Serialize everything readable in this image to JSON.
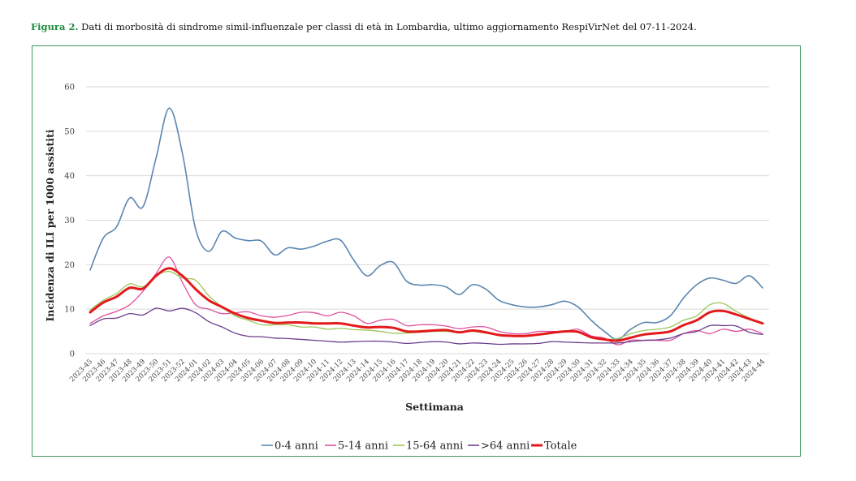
{
  "caption": {
    "figure_label": "Figura 2.",
    "text": " Dati di morbosità di sindrome simil-influenzale per classi di età in Lombardia, ultimo aggiornamento RespiVirNet del 07-11-2024."
  },
  "chart_data": {
    "type": "line",
    "title": "",
    "xlabel": "Settimana",
    "ylabel": "Incidenza di ILI per 1000 assistiti",
    "ylim": [
      0,
      60
    ],
    "yticks": [
      0,
      10,
      20,
      30,
      40,
      50,
      60
    ],
    "grid": true,
    "legend_position": "bottom",
    "categories": [
      "2023-45",
      "2023-46",
      "2023-47",
      "2023-48",
      "2023-49",
      "2023-50",
      "2023-51",
      "2023-52",
      "2024-01",
      "2024-02",
      "2024-03",
      "2024-04",
      "2024-05",
      "2024-06",
      "2024-07",
      "2024-08",
      "2024-09",
      "2024-10",
      "2024-11",
      "2024-12",
      "2024-13",
      "2024-14",
      "2024-15",
      "2024-16",
      "2024-17",
      "2024-18",
      "2024-19",
      "2024-20",
      "2024-21",
      "2024-22",
      "2024-23",
      "2024-24",
      "2024-25",
      "2024-26",
      "2024-27",
      "2024-28",
      "2024-29",
      "2024-30",
      "2024-31",
      "2024-32",
      "2024-33",
      "2024-34",
      "2024-35",
      "2024-36",
      "2024-37",
      "2024-38",
      "2024-39",
      "2024-40",
      "2024-41",
      "2024-42",
      "2024-43",
      "2024-44"
    ],
    "series": [
      {
        "name": "0-4 anni",
        "color": "#5b86b0",
        "width": 1.6,
        "values": [
          18.8,
          26,
          28.5,
          35,
          33,
          44,
          55.2,
          45,
          28,
          23,
          27.5,
          26,
          25.4,
          25.3,
          22.2,
          23.8,
          23.5,
          24.2,
          25.3,
          25.5,
          21,
          17.5,
          19.8,
          20.5,
          16.3,
          15.4,
          15.5,
          15,
          13.3,
          15.5,
          14.5,
          12,
          11,
          10.5,
          10.5,
          11,
          11.8,
          10.5,
          7.5,
          5,
          3.2,
          5.5,
          7,
          7,
          8.5,
          12.5,
          15.5,
          17,
          16.5,
          15.8,
          17.5,
          14.8
        ]
      },
      {
        "name": "5-14 anni",
        "color": "#e0509e",
        "width": 1.3,
        "values": [
          6.8,
          8.5,
          9.5,
          11,
          14,
          18,
          21.7,
          16,
          11,
          10,
          9,
          9.2,
          9.4,
          8.5,
          8.2,
          8.6,
          9.3,
          9.2,
          8.5,
          9.3,
          8.5,
          6.8,
          7.5,
          7.7,
          6.3,
          6.5,
          6.5,
          6.2,
          5.6,
          6,
          6,
          5,
          4.5,
          4.5,
          5,
          5,
          5,
          5.5,
          4,
          3.5,
          2,
          3,
          3,
          3,
          3,
          4.5,
          5.2,
          4.5,
          5.5,
          5,
          5.5,
          4.5
        ]
      },
      {
        "name": "15-64 anni",
        "color": "#9cc65a",
        "width": 1.3,
        "values": [
          9.8,
          12,
          13.5,
          15.7,
          15,
          17.5,
          18.5,
          17,
          16.5,
          13,
          10.5,
          8.5,
          7.5,
          6.5,
          6.5,
          6.5,
          6,
          6,
          5.5,
          5.7,
          5.4,
          5.3,
          5,
          4.6,
          4.6,
          4.8,
          5,
          5,
          4.8,
          5,
          4.6,
          4.2,
          4,
          4,
          4.2,
          4.5,
          5,
          5,
          3.5,
          3.2,
          3.4,
          4.5,
          5.2,
          5.5,
          6,
          7.5,
          8.5,
          11,
          11.3,
          9.5,
          8,
          6.8
        ]
      },
      {
        "name": ">64 anni",
        "color": "#6c3e8e",
        "width": 1.3,
        "values": [
          6.3,
          7.8,
          8,
          9,
          8.7,
          10.2,
          9.6,
          10.2,
          9.2,
          7.2,
          6,
          4.6,
          3.9,
          3.8,
          3.5,
          3.4,
          3.2,
          3,
          2.8,
          2.6,
          2.7,
          2.8,
          2.8,
          2.6,
          2.3,
          2.5,
          2.7,
          2.6,
          2.2,
          2.4,
          2.3,
          2.1,
          2.2,
          2.2,
          2.3,
          2.7,
          2.6,
          2.5,
          2.4,
          2.4,
          2.4,
          2.7,
          3,
          3.1,
          3.5,
          4.5,
          5,
          6.3,
          6.3,
          6.2,
          4.8,
          4.3
        ]
      },
      {
        "name": "Totale",
        "color": "#e31a1c",
        "width": 3,
        "values": [
          9.3,
          11.5,
          12.8,
          14.8,
          14.6,
          17.5,
          19.2,
          17.5,
          14.5,
          12,
          10.5,
          9,
          8,
          7.4,
          6.9,
          7,
          7,
          6.8,
          6.8,
          6.8,
          6.3,
          5.9,
          6,
          5.8,
          5,
          5,
          5.2,
          5.3,
          4.8,
          5.2,
          4.8,
          4.2,
          4,
          4,
          4.3,
          4.7,
          5,
          4.9,
          3.7,
          3.2,
          2.9,
          3.6,
          4.3,
          4.6,
          5,
          6.4,
          7.5,
          9.3,
          9.6,
          8.8,
          7.8,
          6.8
        ]
      }
    ]
  }
}
